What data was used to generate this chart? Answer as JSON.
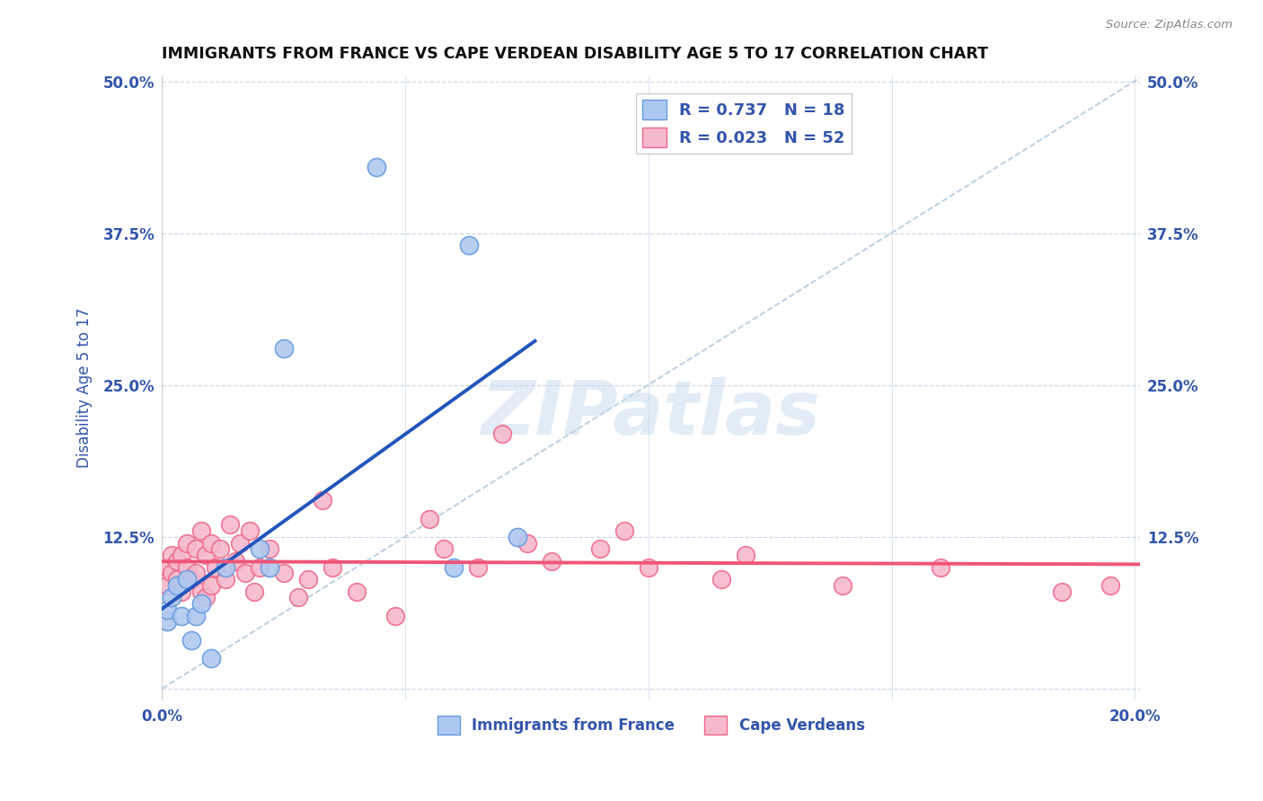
{
  "title": "IMMIGRANTS FROM FRANCE VS CAPE VERDEAN DISABILITY AGE 5 TO 17 CORRELATION CHART",
  "source": "Source: ZipAtlas.com",
  "ylabel": "Disability Age 5 to 17",
  "xlim": [
    0.0,
    0.201
  ],
  "ylim": [
    -0.01,
    0.505
  ],
  "xticks": [
    0.0,
    0.05,
    0.1,
    0.15,
    0.2
  ],
  "xticklabels": [
    "0.0%",
    "",
    "",
    "",
    "20.0%"
  ],
  "yticks": [
    0.0,
    0.125,
    0.25,
    0.375,
    0.5
  ],
  "yticklabels": [
    "",
    "12.5%",
    "25.0%",
    "37.5%",
    "50.0%"
  ],
  "france_r": 0.737,
  "france_n": 18,
  "cape_r": 0.023,
  "cape_n": 52,
  "france_color": "#adc8f0",
  "france_edge": "#6699dd",
  "cape_color": "#f5b8cc",
  "cape_edge": "#ee6688",
  "france_line_color": "#2255bb",
  "cape_line_color": "#ee5577",
  "diag_color": "#b8cce0",
  "france_scatter_x": [
    0.001,
    0.001,
    0.002,
    0.003,
    0.004,
    0.005,
    0.006,
    0.007,
    0.008,
    0.01,
    0.013,
    0.02,
    0.022,
    0.025,
    0.044,
    0.06,
    0.063,
    0.073
  ],
  "france_scatter_y": [
    0.055,
    0.065,
    0.075,
    0.085,
    0.06,
    0.09,
    0.04,
    0.06,
    0.07,
    0.025,
    0.1,
    0.115,
    0.1,
    0.28,
    0.43,
    0.1,
    0.365,
    0.125
  ],
  "cape_scatter_x": [
    0.001,
    0.001,
    0.002,
    0.002,
    0.003,
    0.003,
    0.004,
    0.004,
    0.005,
    0.005,
    0.006,
    0.007,
    0.007,
    0.008,
    0.008,
    0.009,
    0.009,
    0.01,
    0.01,
    0.011,
    0.012,
    0.013,
    0.014,
    0.015,
    0.016,
    0.017,
    0.018,
    0.019,
    0.02,
    0.022,
    0.025,
    0.028,
    0.03,
    0.033,
    0.035,
    0.04,
    0.048,
    0.055,
    0.058,
    0.065,
    0.07,
    0.075,
    0.08,
    0.09,
    0.095,
    0.1,
    0.115,
    0.12,
    0.14,
    0.16,
    0.185,
    0.195
  ],
  "cape_scatter_y": [
    0.1,
    0.085,
    0.095,
    0.11,
    0.09,
    0.105,
    0.11,
    0.08,
    0.1,
    0.12,
    0.09,
    0.115,
    0.095,
    0.08,
    0.13,
    0.11,
    0.075,
    0.12,
    0.085,
    0.1,
    0.115,
    0.09,
    0.135,
    0.105,
    0.12,
    0.095,
    0.13,
    0.08,
    0.1,
    0.115,
    0.095,
    0.075,
    0.09,
    0.155,
    0.1,
    0.08,
    0.06,
    0.14,
    0.115,
    0.1,
    0.21,
    0.12,
    0.105,
    0.115,
    0.13,
    0.1,
    0.09,
    0.11,
    0.085,
    0.1,
    0.08,
    0.085
  ],
  "watermark_text": "ZIPatlas",
  "background_color": "#ffffff",
  "grid_color": "#cdd8e8",
  "title_color": "#111111",
  "tick_color": "#3355aa",
  "legend_france_label": "Immigrants from France",
  "legend_cape_label": "Cape Verdeans"
}
